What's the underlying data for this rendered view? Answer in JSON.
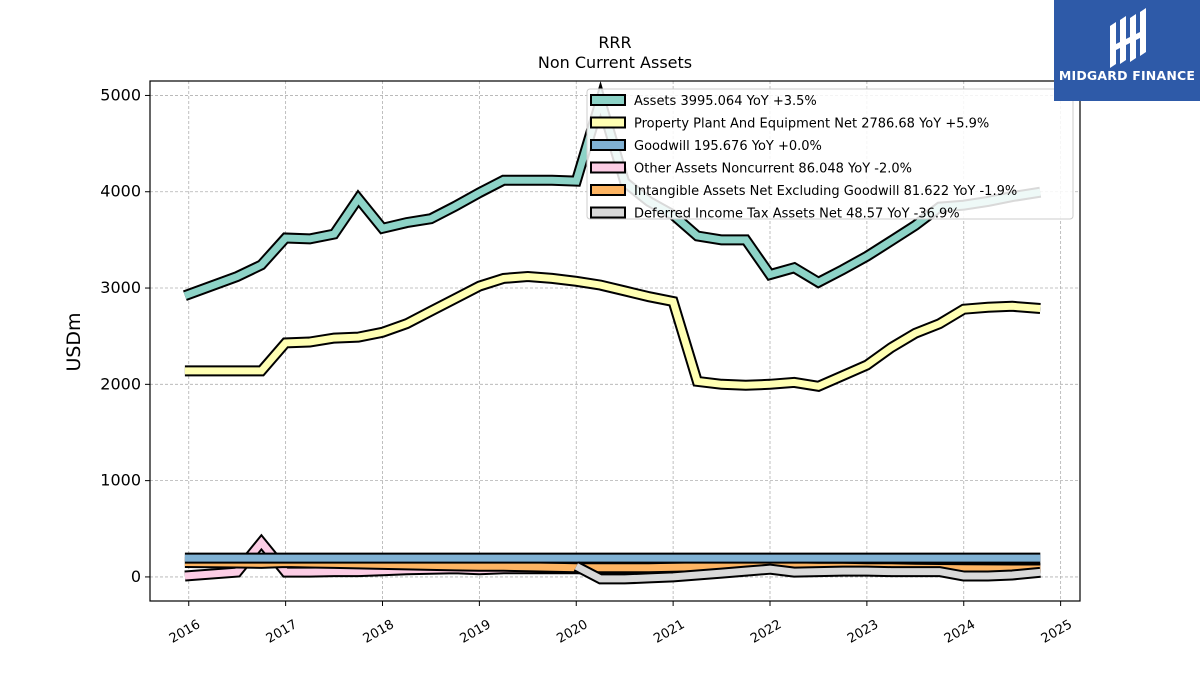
{
  "logo": {
    "text": "MIDGARD FINANCE",
    "color": "#2e5aa8"
  },
  "chart_data": {
    "type": "line",
    "title": "RRR",
    "subtitle": "Non Current  Assets",
    "ylabel": "USDm",
    "xlabel": "",
    "xlim": [
      2015.6,
      2025.2
    ],
    "ylim": [
      -250,
      5150
    ],
    "yticks": [
      0,
      1000,
      2000,
      3000,
      4000,
      5000
    ],
    "xticks": [
      "2016",
      "2017",
      "2018",
      "2019",
      "2020",
      "2021",
      "2022",
      "2023",
      "2024",
      "2025"
    ],
    "grid": true,
    "legend_position": "top-right",
    "series": [
      {
        "name": "Assets",
        "legend": "Assets  3995.064 YoY +3.5%",
        "color": "#8dd3c7",
        "x": [
          2015.96,
          2016.5,
          2016.75,
          2017.0,
          2017.25,
          2017.5,
          2017.75,
          2018.0,
          2018.25,
          2018.5,
          2018.75,
          2019.0,
          2019.25,
          2019.5,
          2019.75,
          2020.0,
          2020.25,
          2020.5,
          2020.75,
          2021.0,
          2021.25,
          2021.5,
          2021.75,
          2022.0,
          2022.25,
          2022.5,
          2022.75,
          2023.0,
          2023.25,
          2023.5,
          2023.75,
          2024.0,
          2024.25,
          2024.5,
          2024.79
        ],
        "values": [
          2920,
          3120,
          3240,
          3520,
          3510,
          3560,
          3930,
          3620,
          3680,
          3720,
          3850,
          3990,
          4120,
          4120,
          4120,
          4110,
          4950,
          4100,
          3900,
          3760,
          3540,
          3500,
          3500,
          3140,
          3210,
          3060,
          3190,
          3330,
          3490,
          3650,
          3840,
          3860,
          3900,
          3950,
          3995
        ]
      },
      {
        "name": "Property Plant And Equipment Net",
        "legend": "Property Plant And Equipment Net  2786.68 YoY +5.9%",
        "color": "#ffffb3",
        "x": [
          2015.96,
          2016.5,
          2016.75,
          2017.0,
          2017.25,
          2017.5,
          2017.75,
          2018.0,
          2018.25,
          2018.5,
          2018.75,
          2019.0,
          2019.25,
          2019.5,
          2019.75,
          2020.0,
          2020.25,
          2020.5,
          2020.75,
          2021.0,
          2021.25,
          2021.5,
          2021.75,
          2022.0,
          2022.25,
          2022.5,
          2022.75,
          2023.0,
          2023.25,
          2023.5,
          2023.75,
          2024.0,
          2024.25,
          2024.5,
          2024.79
        ],
        "values": [
          2140,
          2140,
          2140,
          2430,
          2440,
          2480,
          2490,
          2540,
          2630,
          2760,
          2890,
          3020,
          3100,
          3120,
          3100,
          3070,
          3030,
          2970,
          2910,
          2860,
          2030,
          2000,
          1990,
          2000,
          2020,
          1980,
          2090,
          2200,
          2380,
          2530,
          2630,
          2780,
          2800,
          2810,
          2787
        ]
      },
      {
        "name": "Goodwill",
        "legend": "Goodwill  195.676 YoY +0.0%",
        "color": "#80b1d3",
        "x": [
          2015.96,
          2024.79
        ],
        "values": [
          196,
          196
        ]
      },
      {
        "name": "Other Assets Noncurrent",
        "legend": "Other Assets Noncurrent  86.048 YoY -2.0%",
        "color": "#fccde5",
        "x": [
          2015.96,
          2016.5,
          2016.75,
          2017.0,
          2017.25,
          2017.5,
          2017.75,
          2018.0,
          2018.25,
          2018.5,
          2018.75,
          2019.0,
          2019.25,
          2019.5,
          2019.75,
          2020.0,
          2020.25,
          2020.5,
          2020.75,
          2021.0,
          2021.25,
          2021.5,
          2021.75,
          2022.0,
          2022.25,
          2022.5,
          2022.75,
          2023.0,
          2023.25,
          2023.5,
          2023.75,
          2024.0,
          2024.25,
          2024.5,
          2024.79
        ],
        "values": [
          10,
          50,
          360,
          50,
          50,
          55,
          55,
          65,
          75,
          80,
          85,
          75,
          85,
          85,
          85,
          85,
          80,
          80,
          80,
          80,
          82,
          83,
          85,
          85,
          88,
          90,
          88,
          88,
          88,
          88,
          88,
          88,
          88,
          88,
          86
        ]
      },
      {
        "name": "Intangible Assets Net Excluding Goodwill",
        "legend": "Intangible Assets Net Excluding Goodwill  81.622 YoY -1.9%",
        "color": "#fdb462",
        "x": [
          2015.96,
          2016.5,
          2016.75,
          2017.0,
          2017.25,
          2017.5,
          2017.75,
          2018.0,
          2018.25,
          2018.5,
          2018.75,
          2019.0,
          2019.25,
          2019.5,
          2019.75,
          2020.0,
          2020.25,
          2020.5,
          2020.75,
          2021.0,
          2021.25,
          2021.5,
          2021.75,
          2022.0,
          2022.25,
          2022.5,
          2022.75,
          2023.0,
          2023.25,
          2023.5,
          2023.75,
          2024.0,
          2024.25,
          2024.5,
          2024.79
        ],
        "values": [
          150,
          145,
          140,
          150,
          145,
          140,
          135,
          130,
          125,
          120,
          115,
          110,
          110,
          105,
          100,
          95,
          95,
          95,
          95,
          100,
          105,
          110,
          115,
          110,
          105,
          100,
          100,
          95,
          95,
          90,
          88,
          85,
          83,
          82,
          82
        ]
      },
      {
        "name": "Deferred Income Tax Assets Net",
        "legend": "Deferred Income Tax Assets Net  48.57 YoY -36.9%",
        "color": "#d9d9d9",
        "x": [
          2020.0,
          2020.25,
          2020.5,
          2020.75,
          2021.0,
          2021.25,
          2021.5,
          2021.75,
          2022.0,
          2022.25,
          2022.5,
          2022.75,
          2023.0,
          2023.25,
          2023.5,
          2023.75,
          2024.0,
          2024.25,
          2024.5,
          2024.79
        ],
        "values": [
          110,
          -20,
          -20,
          -10,
          0,
          20,
          40,
          60,
          80,
          50,
          55,
          60,
          60,
          55,
          55,
          55,
          10,
          10,
          20,
          48
        ]
      }
    ]
  }
}
